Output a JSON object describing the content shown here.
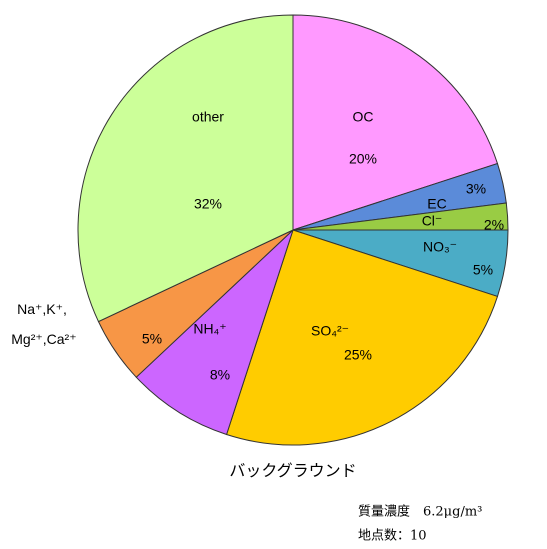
{
  "chart_data": {
    "type": "pie",
    "title": "バックグラウンド",
    "annotations": [
      "質量濃度　6.2μg/m³",
      "地点数：10"
    ],
    "categories": [
      "OC",
      "EC",
      "Cl⁻",
      "NO₃⁻",
      "SO₄²⁻",
      "NH₄⁺",
      "Na⁺,K⁺, Mg²⁺,Ca²⁺",
      "other"
    ],
    "values": [
      20,
      3,
      2,
      5,
      25,
      8,
      5,
      32
    ],
    "value_labels": [
      "20%",
      "3%",
      "2%",
      "5%",
      "25%",
      "8%",
      "5%",
      "32%"
    ],
    "colors": [
      "#ff99ff",
      "#5b8bd9",
      "#99cc44",
      "#4bacc6",
      "#ffcc00",
      "#cc66ff",
      "#f79646",
      "#ccff99"
    ]
  }
}
